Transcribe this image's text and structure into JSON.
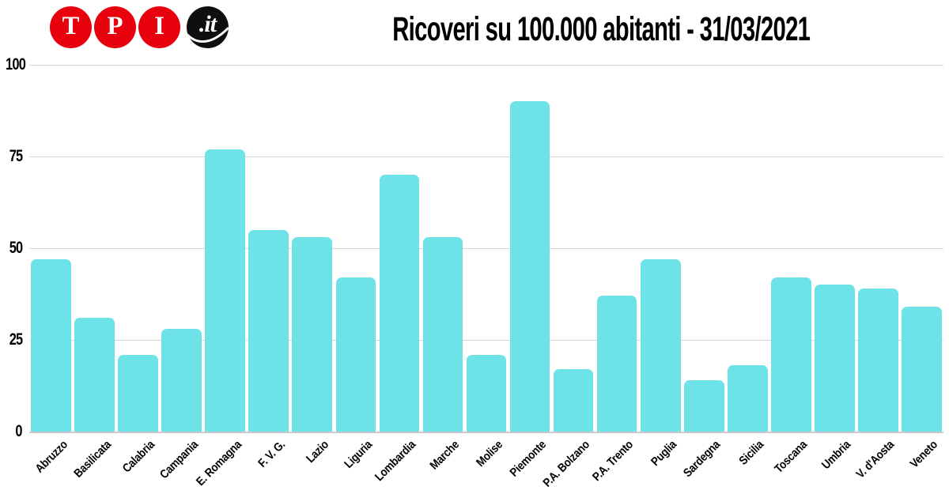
{
  "logo": {
    "letters": [
      "T",
      "P",
      "I"
    ],
    "suffix": ".it",
    "red": "#e8000d",
    "black": "#0f0f0f"
  },
  "title": "Ricoveri su 100.000 abitanti - 31/03/2021",
  "chart_data": {
    "type": "bar",
    "title": "Ricoveri su 100.000 abitanti - 31/03/2021",
    "categories": [
      "Abruzzo",
      "Basilicata",
      "Calabria",
      "Campania",
      "E. Romagna",
      "F. V. G.",
      "Lazio",
      "Liguria",
      "Lombardia",
      "Marche",
      "Molise",
      "Piemonte",
      "P.A. Bolzano",
      "P.A. Trento",
      "Puglia",
      "Sardegna",
      "Sicilia",
      "Toscana",
      "Umbria",
      "V. d'Aosta",
      "Veneto"
    ],
    "values": [
      47,
      31,
      21,
      28,
      77,
      55,
      53,
      42,
      70,
      53,
      21,
      90,
      17,
      37,
      47,
      14,
      18,
      42,
      40,
      39,
      34
    ],
    "xlabel": "",
    "ylabel": "",
    "ylim": [
      0,
      100
    ],
    "yticks": [
      0,
      25,
      50,
      75,
      100
    ],
    "grid": true,
    "legend": false,
    "bar_color": "#6de2e7",
    "grid_color": "#d7d7d7",
    "axis_color": "#c9c9c9",
    "label_rotation_deg": 45
  }
}
